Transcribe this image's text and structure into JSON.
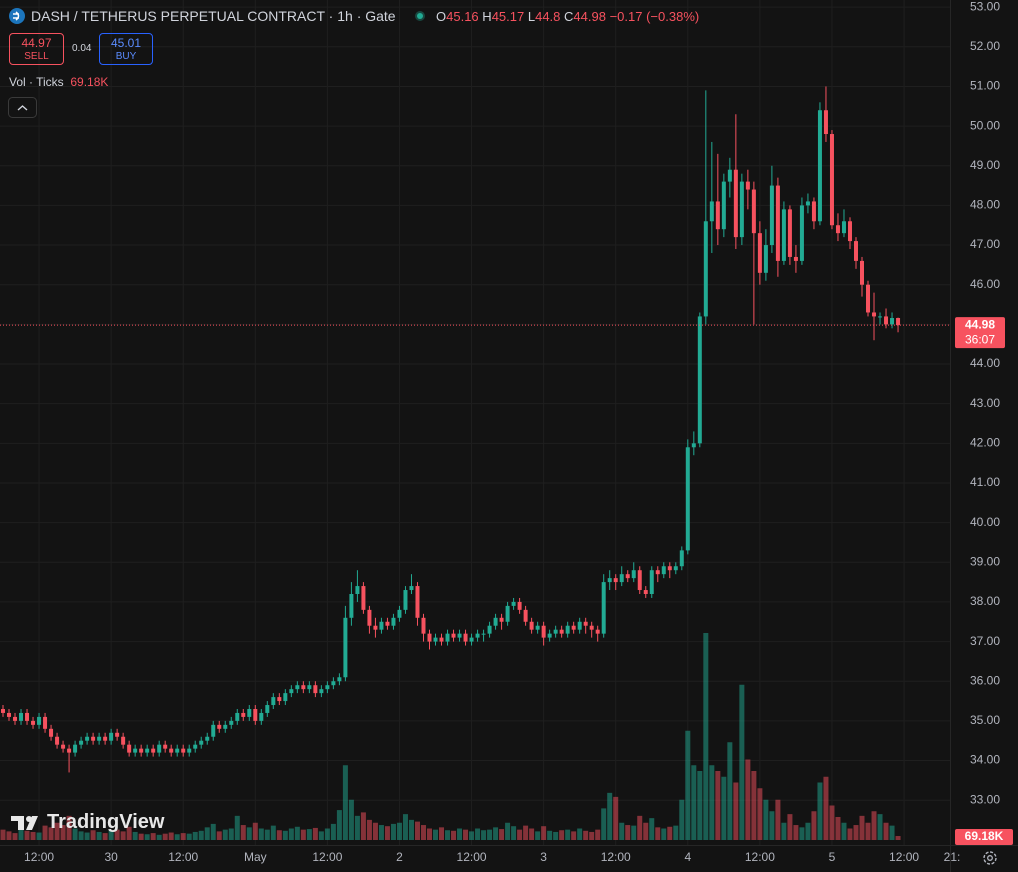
{
  "header": {
    "title": "DASH / TETHERUS PERPETUAL CONTRACT · 1h · Gate",
    "ohlc_prefixes": [
      "O",
      "H",
      "L",
      "C"
    ],
    "change": "−0.17 (−0.38%)",
    "sell_price": 44.97,
    "sell_label": "SELL",
    "spread": 0.04,
    "buy_price": 45.01,
    "buy_label": "BUY",
    "volume_indicator": "Vol · Ticks",
    "volume_reading": "69.18K",
    "watermark": "TradingView"
  },
  "chart_data": {
    "type": "candlestick",
    "categories": [
      null,
      null,
      null,
      null,
      null,
      null,
      "12:00",
      null,
      null,
      null,
      null,
      null,
      null,
      null,
      null,
      null,
      null,
      null,
      "30",
      null,
      null,
      null,
      null,
      null,
      null,
      null,
      null,
      null,
      null,
      null,
      "12:00",
      null,
      null,
      null,
      null,
      null,
      null,
      null,
      null,
      null,
      null,
      null,
      "May",
      null,
      null,
      null,
      null,
      null,
      null,
      null,
      null,
      null,
      null,
      null,
      "12:00",
      null,
      null,
      null,
      null,
      null,
      null,
      null,
      null,
      null,
      null,
      null,
      "2",
      null,
      null,
      null,
      null,
      null,
      null,
      null,
      null,
      null,
      null,
      null,
      "12:00",
      null,
      null,
      null,
      null,
      null,
      null,
      null,
      null,
      null,
      null,
      null,
      "3",
      null,
      null,
      null,
      null,
      null,
      null,
      null,
      null,
      null,
      null,
      null,
      "12:00",
      null,
      null,
      null,
      null,
      null,
      null,
      null,
      null,
      null,
      null,
      null,
      "4",
      null,
      null,
      null,
      null,
      null,
      null,
      null,
      null,
      null,
      null,
      null,
      "12:00",
      null,
      null,
      null,
      null,
      null,
      null,
      null,
      null,
      null,
      null,
      null,
      "5",
      null,
      null,
      null,
      null,
      null,
      null,
      null,
      null,
      null,
      null,
      null,
      "12:00",
      null,
      null,
      null,
      null,
      null,
      null,
      null,
      null,
      "21:"
    ],
    "open": [
      35.3,
      35.2,
      35.1,
      35.0,
      35.2,
      35.0,
      34.9,
      35.1,
      34.8,
      34.6,
      34.4,
      34.3,
      34.2,
      34.4,
      34.5,
      34.6,
      34.5,
      34.6,
      34.5,
      34.7,
      34.6,
      34.4,
      34.2,
      34.3,
      34.2,
      34.3,
      34.2,
      34.4,
      34.3,
      34.2,
      34.3,
      34.2,
      34.3,
      34.4,
      34.5,
      34.6,
      34.9,
      34.8,
      34.9,
      35.0,
      35.2,
      35.1,
      35.3,
      35.0,
      35.2,
      35.4,
      35.6,
      35.5,
      35.7,
      35.8,
      35.9,
      35.8,
      35.9,
      35.7,
      35.8,
      35.9,
      36.0,
      36.1,
      37.6,
      38.2,
      38.4,
      37.8,
      37.4,
      37.3,
      37.5,
      37.4,
      37.6,
      37.8,
      38.3,
      38.4,
      37.6,
      37.2,
      37.0,
      37.1,
      37.0,
      37.2,
      37.1,
      37.2,
      37.0,
      37.1,
      37.2,
      37.2,
      37.4,
      37.6,
      37.5,
      37.9,
      38.0,
      37.8,
      37.5,
      37.3,
      37.4,
      37.1,
      37.2,
      37.3,
      37.2,
      37.4,
      37.3,
      37.5,
      37.4,
      37.3,
      37.2,
      38.5,
      38.6,
      38.5,
      38.7,
      38.6,
      38.8,
      38.3,
      38.2,
      38.8,
      38.7,
      38.9,
      38.8,
      38.9,
      39.3,
      41.9,
      42.0,
      45.2,
      47.6,
      48.1,
      47.4,
      48.6,
      48.9,
      47.2,
      48.6,
      48.4,
      47.3,
      46.3,
      47.0,
      48.5,
      46.6,
      47.9,
      46.7,
      46.6,
      48.0,
      48.1,
      47.6,
      50.4,
      49.8,
      47.5,
      47.3,
      47.6,
      47.1,
      46.6,
      46.0,
      45.3,
      45.2,
      45.2,
      45.0,
      45.16,
      null,
      null,
      null,
      null,
      null,
      null,
      null,
      null,
      null,
      null
    ],
    "high": [
      35.4,
      35.3,
      35.2,
      35.3,
      35.3,
      35.1,
      35.2,
      35.2,
      34.9,
      34.7,
      34.5,
      34.4,
      34.5,
      34.6,
      34.7,
      34.7,
      34.7,
      34.7,
      34.8,
      34.8,
      34.7,
      34.5,
      34.4,
      34.4,
      34.4,
      34.4,
      34.5,
      34.5,
      34.4,
      34.4,
      34.4,
      34.4,
      34.5,
      34.6,
      34.7,
      35.0,
      35.0,
      35.0,
      35.1,
      35.3,
      35.3,
      35.4,
      35.4,
      35.3,
      35.5,
      35.7,
      35.7,
      35.8,
      35.9,
      36.0,
      36.0,
      36.0,
      36.0,
      35.9,
      36.0,
      36.1,
      36.2,
      37.9,
      38.5,
      38.8,
      38.5,
      37.9,
      37.6,
      37.6,
      37.6,
      37.7,
      37.9,
      38.4,
      38.7,
      38.5,
      37.7,
      37.3,
      37.2,
      37.2,
      37.3,
      37.3,
      37.3,
      37.3,
      37.2,
      37.3,
      37.3,
      37.5,
      37.7,
      37.7,
      38.0,
      38.1,
      38.1,
      37.9,
      37.6,
      37.5,
      37.5,
      37.3,
      37.4,
      37.4,
      37.5,
      37.5,
      37.6,
      37.6,
      37.5,
      37.4,
      38.7,
      38.8,
      38.7,
      38.9,
      38.8,
      39.0,
      38.9,
      38.4,
      38.9,
      38.9,
      39.0,
      39.0,
      39.0,
      39.4,
      42.1,
      42.3,
      45.3,
      50.9,
      49.6,
      49.3,
      48.8,
      49.2,
      50.3,
      48.8,
      48.9,
      48.6,
      47.6,
      47.4,
      49.0,
      48.7,
      48.1,
      48.0,
      47.0,
      48.2,
      48.3,
      48.2,
      50.6,
      51.0,
      49.9,
      47.8,
      47.9,
      47.7,
      47.2,
      46.7,
      46.1,
      45.8,
      45.3,
      45.4,
      45.3,
      45.17,
      null,
      null,
      null,
      null,
      null,
      null,
      null,
      null,
      null,
      null
    ],
    "low": [
      35.1,
      35.0,
      34.9,
      34.9,
      34.9,
      34.8,
      34.8,
      34.7,
      34.5,
      34.3,
      34.2,
      33.7,
      34.1,
      34.3,
      34.4,
      34.4,
      34.4,
      34.4,
      34.4,
      34.5,
      34.3,
      34.1,
      34.1,
      34.1,
      34.1,
      34.1,
      34.1,
      34.2,
      34.1,
      34.1,
      34.1,
      34.1,
      34.2,
      34.3,
      34.4,
      34.5,
      34.7,
      34.7,
      34.8,
      34.9,
      35.0,
      35.0,
      34.9,
      34.9,
      35.1,
      35.3,
      35.4,
      35.4,
      35.6,
      35.7,
      35.7,
      35.7,
      35.6,
      35.6,
      35.7,
      35.8,
      35.9,
      36.0,
      37.4,
      38.0,
      37.7,
      37.2,
      37.1,
      37.2,
      37.3,
      37.3,
      37.5,
      37.7,
      38.2,
      37.4,
      37.0,
      36.8,
      36.9,
      36.9,
      36.9,
      37.0,
      37.0,
      36.9,
      36.9,
      37.0,
      37.0,
      37.1,
      37.3,
      37.3,
      37.4,
      37.8,
      37.7,
      37.4,
      37.2,
      37.2,
      36.9,
      37.0,
      37.1,
      37.1,
      37.1,
      37.2,
      37.2,
      37.2,
      37.1,
      37.0,
      37.1,
      38.3,
      38.3,
      38.4,
      38.5,
      38.5,
      38.2,
      38.1,
      38.1,
      38.5,
      38.6,
      38.6,
      38.7,
      38.8,
      39.2,
      41.7,
      41.9,
      45.0,
      46.8,
      47.0,
      47.2,
      48.2,
      46.9,
      47.0,
      47.9,
      45.0,
      46.0,
      46.1,
      46.8,
      46.2,
      46.5,
      46.5,
      46.3,
      46.5,
      47.8,
      47.4,
      47.5,
      49.6,
      47.4,
      47.1,
      47.2,
      46.9,
      46.4,
      45.7,
      45.2,
      44.6,
      45.0,
      44.9,
      44.9,
      44.8,
      null,
      null,
      null,
      null,
      null,
      null,
      null,
      null,
      null,
      null
    ],
    "close": [
      35.2,
      35.1,
      35.0,
      35.2,
      35.0,
      34.9,
      35.1,
      34.8,
      34.6,
      34.4,
      34.3,
      34.2,
      34.4,
      34.5,
      34.6,
      34.5,
      34.6,
      34.5,
      34.7,
      34.6,
      34.4,
      34.2,
      34.3,
      34.2,
      34.3,
      34.2,
      34.4,
      34.3,
      34.2,
      34.3,
      34.2,
      34.3,
      34.4,
      34.5,
      34.6,
      34.9,
      34.8,
      34.9,
      35.0,
      35.2,
      35.1,
      35.3,
      35.0,
      35.2,
      35.4,
      35.6,
      35.5,
      35.7,
      35.8,
      35.9,
      35.8,
      35.9,
      35.7,
      35.8,
      35.9,
      36.0,
      36.1,
      37.6,
      38.2,
      38.4,
      37.8,
      37.4,
      37.3,
      37.5,
      37.4,
      37.6,
      37.8,
      38.3,
      38.4,
      37.6,
      37.2,
      37.0,
      37.1,
      37.0,
      37.2,
      37.1,
      37.2,
      37.0,
      37.1,
      37.2,
      37.2,
      37.4,
      37.6,
      37.5,
      37.9,
      38.0,
      37.8,
      37.5,
      37.3,
      37.4,
      37.1,
      37.2,
      37.3,
      37.2,
      37.4,
      37.3,
      37.5,
      37.4,
      37.3,
      37.2,
      38.5,
      38.6,
      38.5,
      38.7,
      38.6,
      38.8,
      38.3,
      38.2,
      38.8,
      38.7,
      38.9,
      38.8,
      38.9,
      39.3,
      41.9,
      42.0,
      45.2,
      47.6,
      48.1,
      47.4,
      48.6,
      48.9,
      47.2,
      48.6,
      48.4,
      47.3,
      46.3,
      47.0,
      48.5,
      46.6,
      47.9,
      46.7,
      46.6,
      48.0,
      48.1,
      47.6,
      50.4,
      49.8,
      47.5,
      47.3,
      47.6,
      47.1,
      46.6,
      46.0,
      45.3,
      45.2,
      45.2,
      45.0,
      45.16,
      44.98,
      null,
      null,
      null,
      null,
      null,
      null,
      null,
      null,
      null,
      null
    ],
    "volume": [
      180000,
      150000,
      120000,
      200000,
      160000,
      140000,
      130000,
      250000,
      220000,
      300000,
      260000,
      420000,
      200000,
      150000,
      130000,
      170000,
      140000,
      120000,
      160000,
      180000,
      150000,
      230000,
      140000,
      110000,
      100000,
      120000,
      90000,
      110000,
      130000,
      100000,
      120000,
      110000,
      140000,
      160000,
      220000,
      280000,
      150000,
      180000,
      200000,
      420000,
      260000,
      220000,
      300000,
      200000,
      180000,
      250000,
      170000,
      160000,
      200000,
      230000,
      180000,
      190000,
      210000,
      150000,
      200000,
      280000,
      520000,
      1300000,
      700000,
      420000,
      480000,
      350000,
      300000,
      260000,
      240000,
      280000,
      300000,
      450000,
      350000,
      320000,
      260000,
      200000,
      180000,
      220000,
      170000,
      160000,
      200000,
      180000,
      150000,
      200000,
      170000,
      180000,
      220000,
      190000,
      300000,
      240000,
      180000,
      250000,
      200000,
      150000,
      240000,
      160000,
      140000,
      170000,
      180000,
      150000,
      200000,
      160000,
      140000,
      180000,
      550000,
      820000,
      750000,
      300000,
      260000,
      250000,
      420000,
      300000,
      380000,
      220000,
      200000,
      230000,
      250000,
      700000,
      1900000,
      1300000,
      1200000,
      3600000,
      1300000,
      1200000,
      1100000,
      1700000,
      1000000,
      2700000,
      1400000,
      1200000,
      900000,
      700000,
      500000,
      700000,
      300000,
      450000,
      260000,
      220000,
      300000,
      500000,
      1000000,
      1100000,
      600000,
      400000,
      300000,
      200000,
      260000,
      420000,
      300000,
      500000,
      450000,
      300000,
      250000,
      69180,
      null,
      null,
      null,
      null,
      null,
      null,
      null,
      null,
      null,
      null
    ],
    "up_color": "#22ab94",
    "down_color": "#f7525f",
    "ylim": [
      31.87,
      53.18
    ],
    "yticks": [
      {
        "value": 53,
        "label": "53.00"
      },
      {
        "value": 52,
        "label": "52.00"
      },
      {
        "value": 51,
        "label": "51.00"
      },
      {
        "value": 50,
        "label": "50.00"
      },
      {
        "value": 49,
        "label": "49.00"
      },
      {
        "value": 48,
        "label": "48.00"
      },
      {
        "value": 47,
        "label": "47.00"
      },
      {
        "value": 46,
        "label": "46.00"
      },
      {
        "value": 45,
        "label": "45.00"
      },
      {
        "value": 44,
        "label": "44.00"
      },
      {
        "value": 43,
        "label": "43.00"
      },
      {
        "value": 42,
        "label": "42.00"
      },
      {
        "value": 41,
        "label": "41.00"
      },
      {
        "value": 40,
        "label": "40.00"
      },
      {
        "value": 39,
        "label": "39.00"
      },
      {
        "value": 38,
        "label": "38.00"
      },
      {
        "value": 37,
        "label": "37.00"
      },
      {
        "value": 36,
        "label": "36.00"
      },
      {
        "value": 35,
        "label": "35.00"
      },
      {
        "value": 34,
        "label": "34.00"
      },
      {
        "value": 33,
        "label": "33.00"
      }
    ],
    "grid": true,
    "countdown": "36:07",
    "volume_badge": "69.18K"
  }
}
